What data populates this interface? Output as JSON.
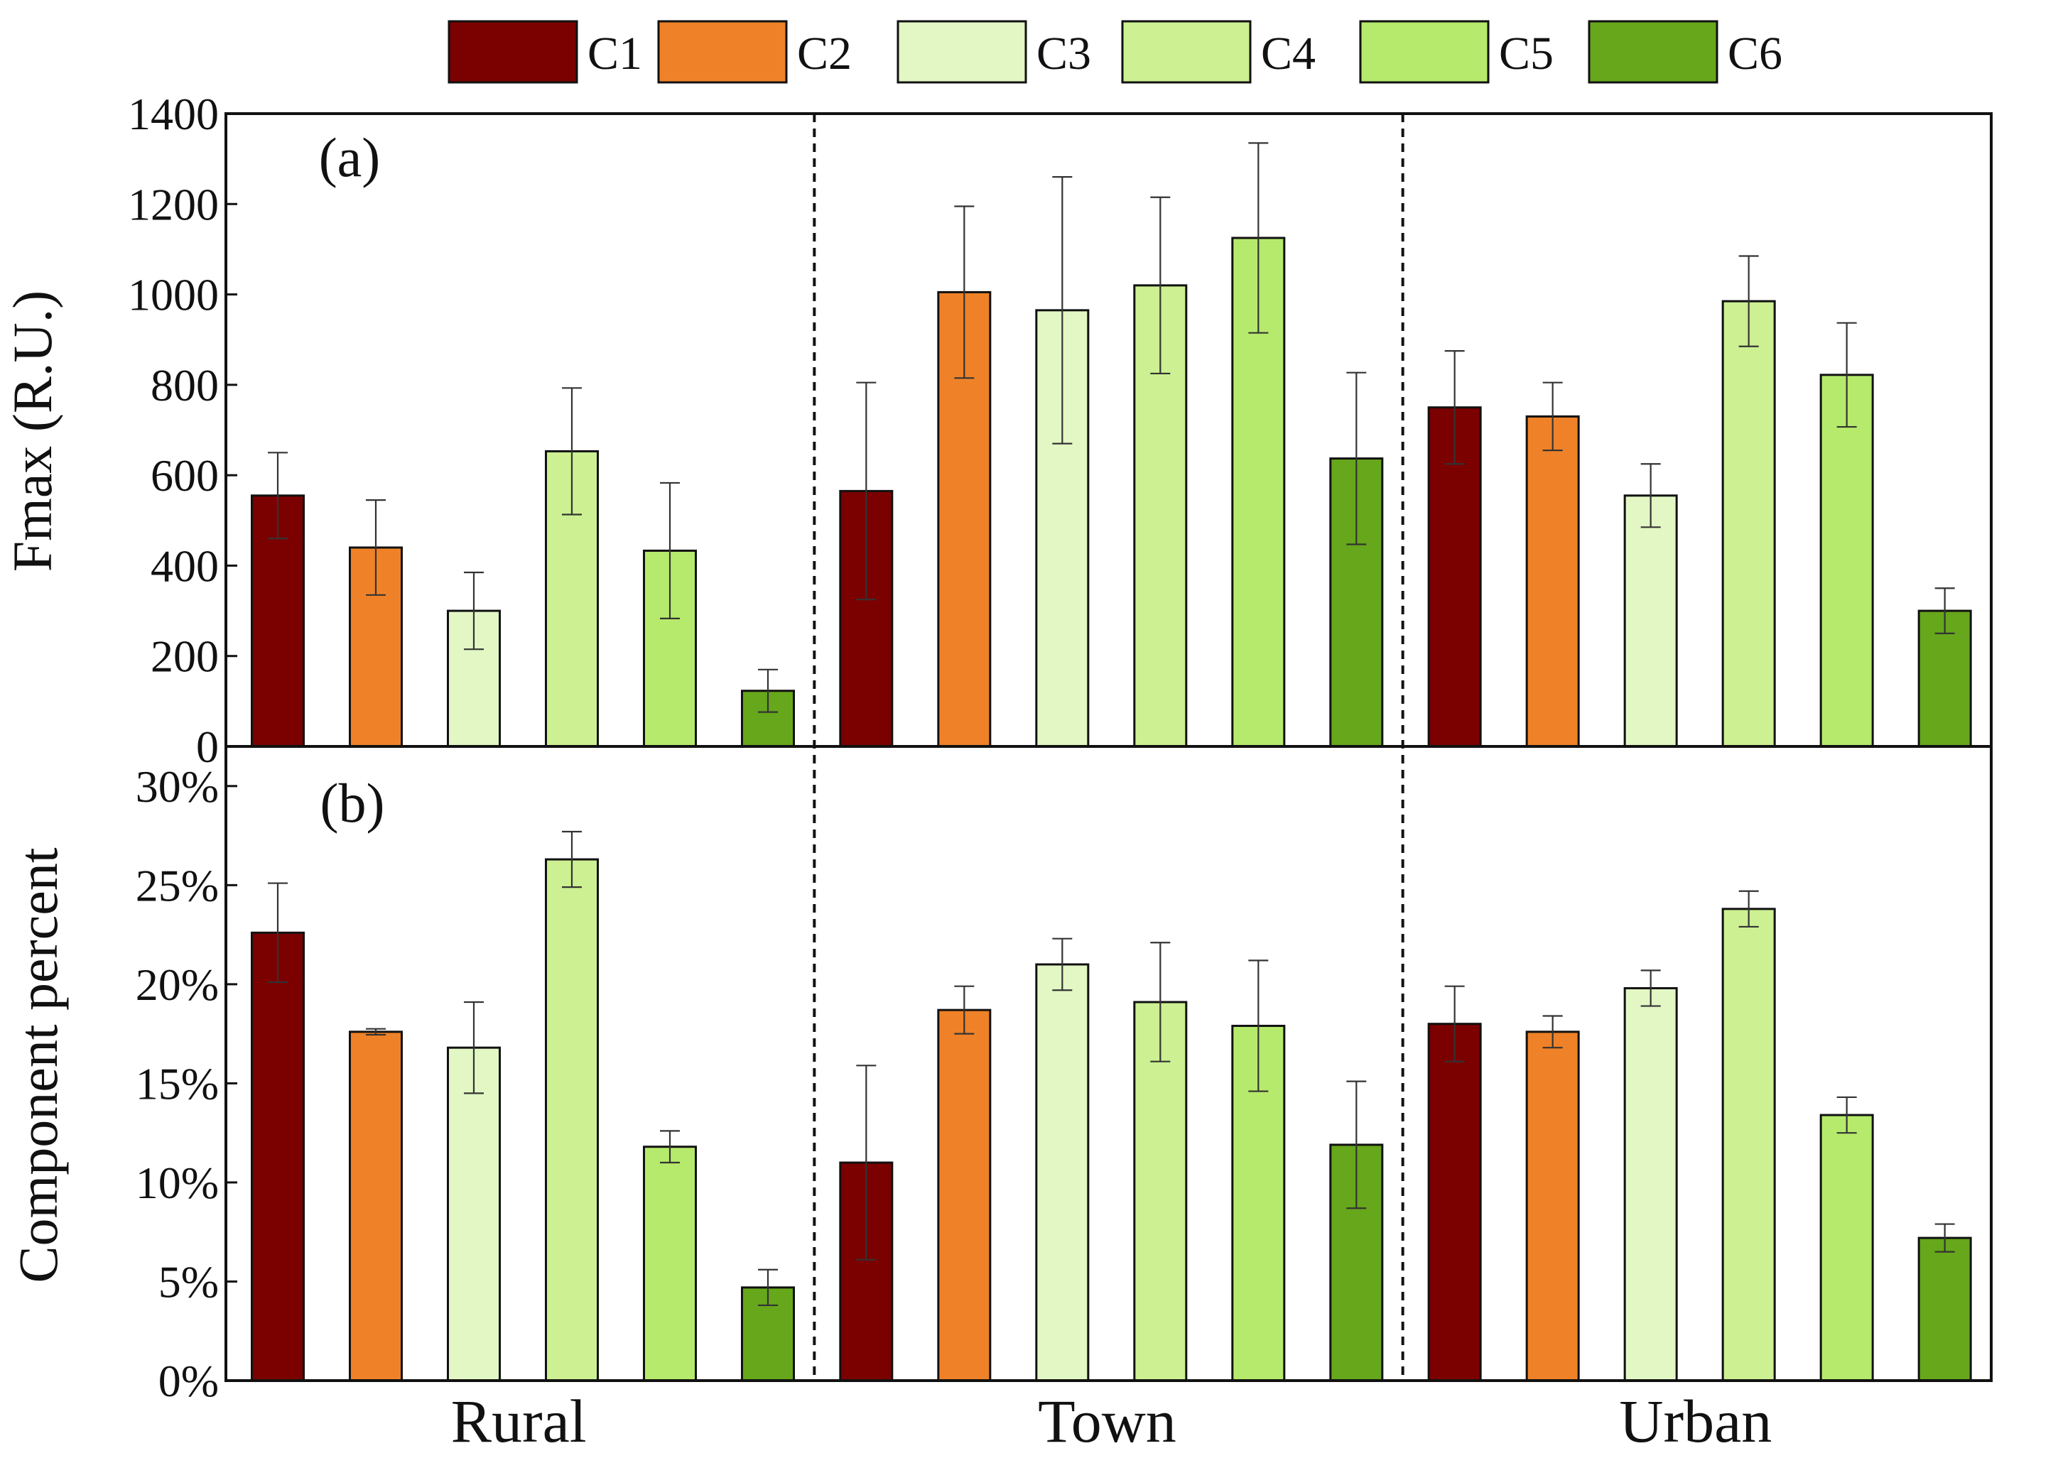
{
  "chart_data": [
    {
      "type": "bar",
      "panel_label": "(a)",
      "ylabel": "Fmax (R.U.)",
      "ylim": [
        0,
        1400
      ],
      "yticks": [
        0,
        200,
        400,
        600,
        800,
        1000,
        1200,
        1400
      ],
      "ytick_labels": [
        "0",
        "200",
        "400",
        "600",
        "800",
        "1000",
        "1200",
        "1400"
      ],
      "groups": [
        "Rural",
        "Town",
        "Urban"
      ],
      "series": [
        {
          "name": "C1",
          "values": [
            555,
            565,
            750
          ],
          "errors": [
            95,
            240,
            125
          ]
        },
        {
          "name": "C2",
          "values": [
            440,
            1005,
            730
          ],
          "errors": [
            105,
            190,
            75
          ]
        },
        {
          "name": "C3",
          "values": [
            300,
            965,
            555
          ],
          "errors": [
            85,
            295,
            70
          ]
        },
        {
          "name": "C4",
          "values": [
            653,
            1020,
            985
          ],
          "errors": [
            140,
            195,
            100
          ]
        },
        {
          "name": "C5",
          "values": [
            433,
            1125,
            822
          ],
          "errors": [
            150,
            210,
            115
          ]
        },
        {
          "name": "C6",
          "values": [
            123,
            637,
            300
          ],
          "errors": [
            47,
            190,
            50
          ]
        }
      ]
    },
    {
      "type": "bar",
      "panel_label": "(b)",
      "ylabel": "Component percent",
      "ylim": [
        0,
        32
      ],
      "yticks": [
        0,
        5,
        10,
        15,
        20,
        25,
        30
      ],
      "ytick_labels": [
        "0%",
        "5%",
        "10%",
        "15%",
        "20%",
        "25%",
        "30%"
      ],
      "groups": [
        "Rural",
        "Town",
        "Urban"
      ],
      "series": [
        {
          "name": "C1",
          "values": [
            22.6,
            11.0,
            18.0
          ],
          "errors": [
            2.5,
            4.9,
            1.9
          ]
        },
        {
          "name": "C2",
          "values": [
            17.6,
            18.7,
            17.6
          ],
          "errors": [
            0.15,
            1.2,
            0.8
          ]
        },
        {
          "name": "C3",
          "values": [
            16.8,
            21.0,
            19.8
          ],
          "errors": [
            2.3,
            1.3,
            0.9
          ]
        },
        {
          "name": "C4",
          "values": [
            26.3,
            19.1,
            23.8
          ],
          "errors": [
            1.4,
            3.0,
            0.9
          ]
        },
        {
          "name": "C5",
          "values": [
            11.8,
            17.9,
            13.4
          ],
          "errors": [
            0.8,
            3.3,
            0.9
          ]
        },
        {
          "name": "C6",
          "values": [
            4.7,
            11.9,
            7.2
          ],
          "errors": [
            0.9,
            3.2,
            0.7
          ]
        }
      ]
    }
  ],
  "legend": [
    {
      "label": "C1",
      "color": "#7b0000"
    },
    {
      "label": "C2",
      "color": "#ef8228"
    },
    {
      "label": "C3",
      "color": "#e2f7c4"
    },
    {
      "label": "C4",
      "color": "#ccf092"
    },
    {
      "label": "C5",
      "color": "#b6ea6c"
    },
    {
      "label": "C6",
      "color": "#66a71b"
    }
  ],
  "x_group_labels": [
    "Rural",
    "Town",
    "Urban"
  ]
}
